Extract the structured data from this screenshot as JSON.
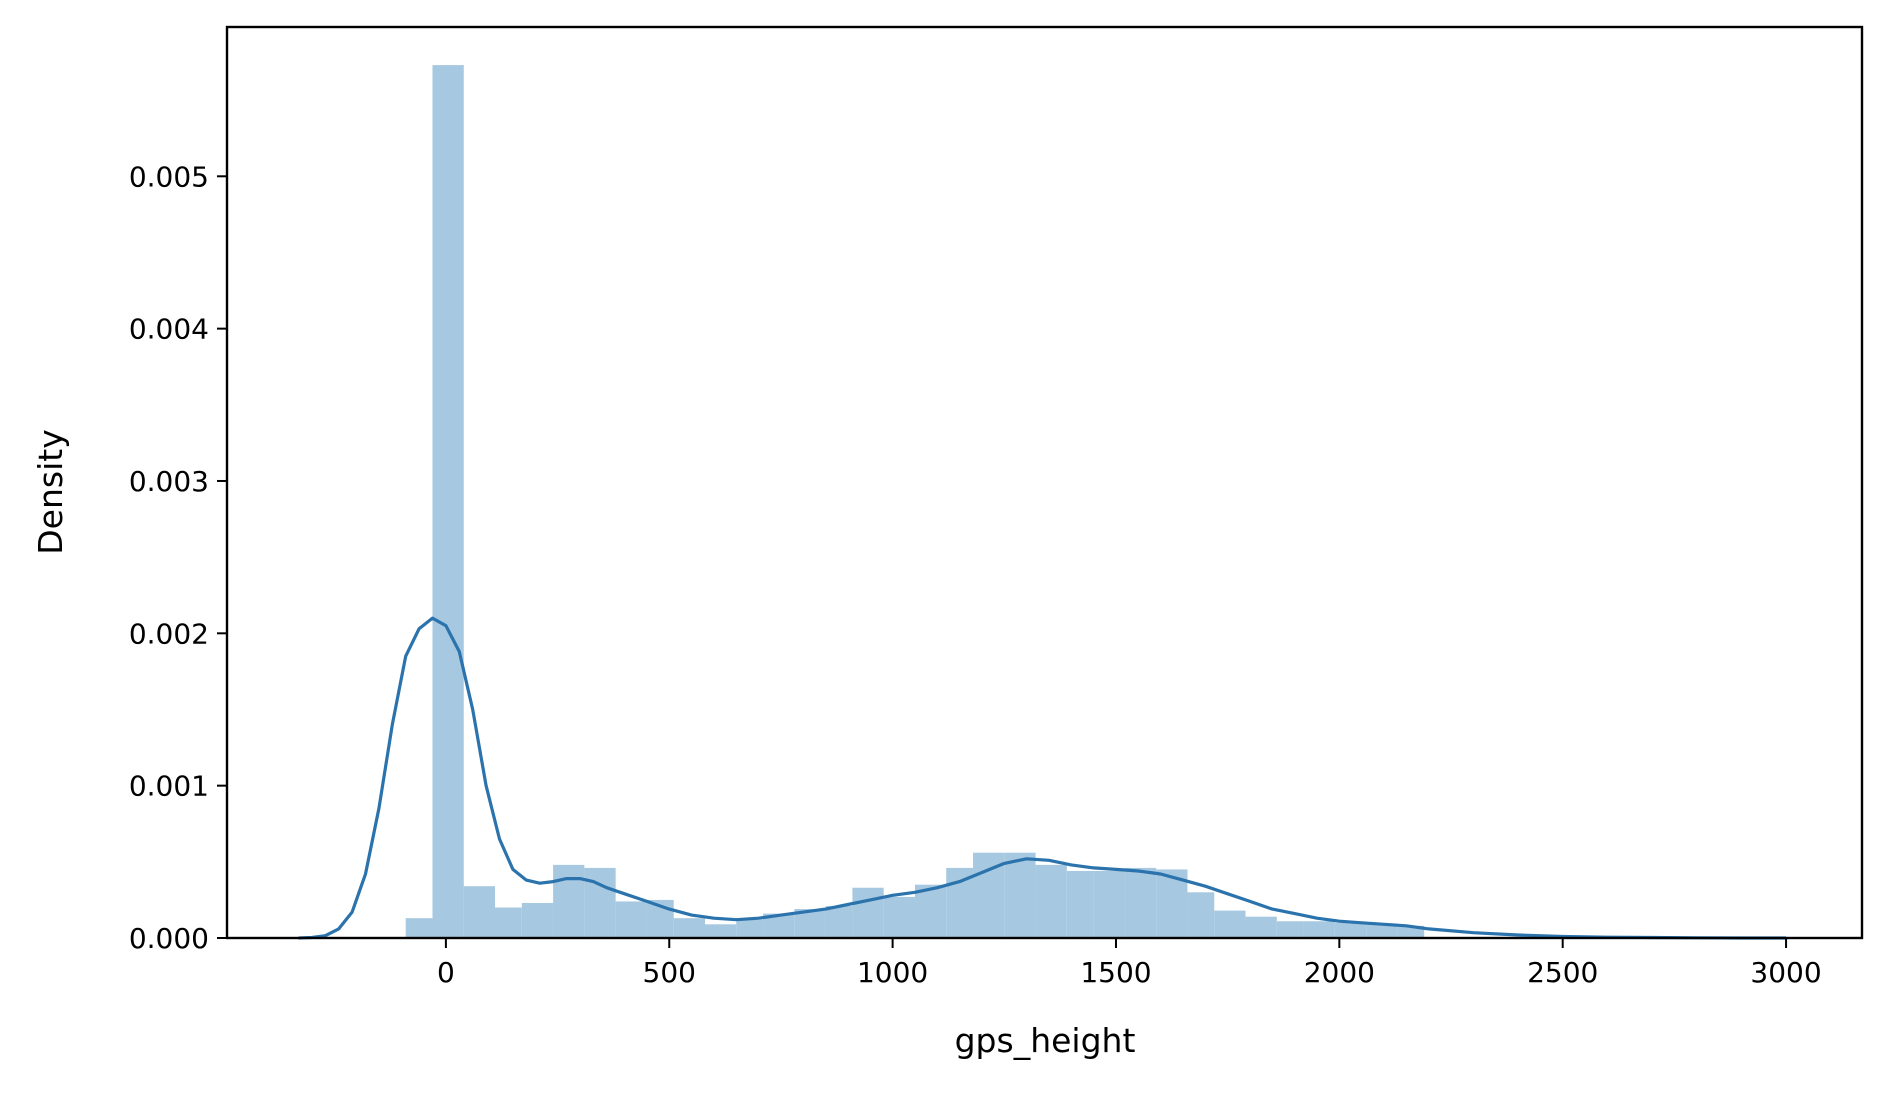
{
  "chart_data": {
    "type": "histogram",
    "title": "",
    "xlabel": "gps_height",
    "ylabel": "Density",
    "xlim": [
      -490,
      3170
    ],
    "ylim": [
      0,
      0.00598
    ],
    "xticks": [
      0,
      500,
      1000,
      1500,
      2000,
      2500,
      3000
    ],
    "xtick_labels": [
      "0",
      "500",
      "1000",
      "1500",
      "2000",
      "2500",
      "3000"
    ],
    "yticks": [
      0.0,
      0.001,
      0.002,
      0.003,
      0.004,
      0.005
    ],
    "ytick_labels": [
      "0.000",
      "0.001",
      "0.002",
      "0.003",
      "0.004",
      "0.005"
    ],
    "grid": false,
    "legend": "none",
    "bar_color": "#a6c8e0",
    "line_color": "#2b73ad",
    "histogram": {
      "bin_edges": [
        -90,
        -30,
        40,
        110,
        170,
        240,
        310,
        380,
        450,
        510,
        580,
        650,
        710,
        780,
        850,
        910,
        980,
        1050,
        1120,
        1180,
        1250,
        1320,
        1390,
        1450,
        1520,
        1590,
        1660,
        1720,
        1790,
        1860,
        1920,
        1990,
        2060,
        2130,
        2190
      ],
      "densities": [
        0.00013,
        0.00573,
        0.00034,
        0.0002,
        0.00023,
        0.00048,
        0.00046,
        0.00024,
        0.00025,
        0.00013,
        9e-05,
        0.00012,
        0.00016,
        0.00019,
        0.00021,
        0.00033,
        0.00027,
        0.00035,
        0.00046,
        0.00056,
        0.00056,
        0.00048,
        0.00044,
        0.00044,
        0.00046,
        0.00045,
        0.0003,
        0.00018,
        0.00014,
        0.00011,
        0.00011,
        0.0001,
        9e-05,
        8e-05
      ]
    },
    "kde": {
      "x": [
        -330,
        -300,
        -270,
        -240,
        -210,
        -180,
        -150,
        -120,
        -90,
        -60,
        -30,
        0,
        30,
        60,
        90,
        120,
        150,
        180,
        210,
        240,
        270,
        300,
        330,
        360,
        400,
        450,
        500,
        550,
        600,
        650,
        700,
        750,
        800,
        850,
        900,
        950,
        1000,
        1050,
        1100,
        1150,
        1200,
        1250,
        1300,
        1350,
        1400,
        1450,
        1500,
        1550,
        1600,
        1650,
        1700,
        1750,
        1800,
        1850,
        1900,
        1950,
        2000,
        2050,
        2100,
        2150,
        2200,
        2300,
        2400,
        2500,
        2600,
        2700,
        2800,
        2900,
        3000
      ],
      "y": [
        0.0,
        3e-06,
        1.5e-05,
        6e-05,
        0.00017,
        0.00042,
        0.00085,
        0.0014,
        0.00185,
        0.00203,
        0.0021,
        0.00205,
        0.00188,
        0.0015,
        0.001,
        0.00065,
        0.00045,
        0.00038,
        0.00036,
        0.00037,
        0.00039,
        0.00039,
        0.00037,
        0.00033,
        0.00029,
        0.00024,
        0.00019,
        0.00015,
        0.00013,
        0.00012,
        0.00013,
        0.00015,
        0.00017,
        0.00019,
        0.00022,
        0.00025,
        0.00028,
        0.0003,
        0.00033,
        0.00037,
        0.00043,
        0.00049,
        0.00052,
        0.00051,
        0.00048,
        0.00046,
        0.00045,
        0.00044,
        0.00042,
        0.00038,
        0.00034,
        0.00029,
        0.00024,
        0.00019,
        0.00016,
        0.00013,
        0.00011,
        0.0001,
        9e-05,
        8e-05,
        6e-05,
        3.5e-05,
        2e-05,
        1e-05,
        5e-06,
        3e-06,
        1e-06,
        0.0,
        0.0
      ]
    }
  }
}
